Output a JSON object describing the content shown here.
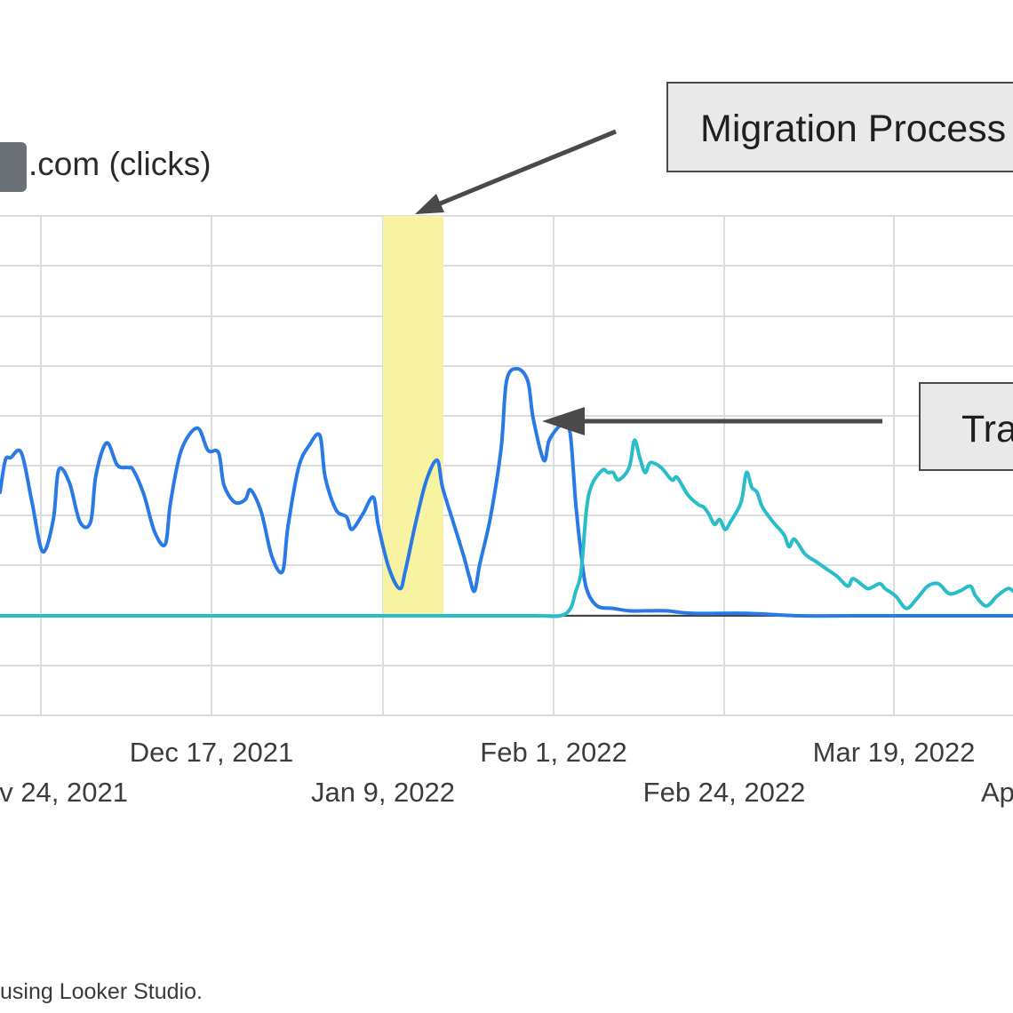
{
  "legend": {
    "label": ".com (clicks)",
    "swatch_color": "#6b7177"
  },
  "callouts": [
    {
      "text": "Migration Process"
    },
    {
      "text": "Tra"
    }
  ],
  "footer": {
    "text": "using Looker Studio."
  },
  "colors": {
    "old_domain": "#2979e6",
    "new_domain": "#29bcc9",
    "highlight": "#f7f3a0",
    "grid": "#dcdcdc"
  },
  "chart_data": {
    "type": "line",
    "x_tick_labels_row1": [
      "Dec 17, 2021",
      "Feb 1, 2022",
      "Mar 19, 2022"
    ],
    "x_tick_labels_row2": [
      "v 24, 2021",
      "Jan 9, 2022",
      "Feb 24, 2022",
      "Ap"
    ],
    "highlight_range": [
      "2022-01-09",
      "2022-01-18"
    ],
    "grid": true,
    "legend_position": "top-left",
    "series": [
      {
        "values": [
          [
            0,
            0.5
          ],
          [
            1,
            0.63
          ],
          [
            2,
            0.64
          ],
          [
            4,
            0.66
          ],
          [
            6,
            0.46
          ],
          [
            8,
            0.26
          ],
          [
            10,
            0.39
          ],
          [
            11,
            0.59
          ],
          [
            13,
            0.54
          ],
          [
            15,
            0.38
          ],
          [
            17,
            0.38
          ],
          [
            18,
            0.57
          ],
          [
            20,
            0.7
          ],
          [
            22,
            0.61
          ],
          [
            24,
            0.6
          ],
          [
            25,
            0.59
          ],
          [
            27,
            0.49
          ],
          [
            29,
            0.34
          ],
          [
            31,
            0.29
          ],
          [
            32,
            0.46
          ],
          [
            34,
            0.67
          ],
          [
            37,
            0.76
          ],
          [
            39,
            0.67
          ],
          [
            41,
            0.66
          ],
          [
            42,
            0.53
          ],
          [
            44,
            0.46
          ],
          [
            46,
            0.47
          ],
          [
            47,
            0.51
          ],
          [
            49,
            0.42
          ],
          [
            51,
            0.24
          ],
          [
            53,
            0.18
          ],
          [
            54,
            0.36
          ],
          [
            56,
            0.6
          ],
          [
            58,
            0.69
          ],
          [
            60,
            0.73
          ],
          [
            61,
            0.56
          ],
          [
            63,
            0.43
          ],
          [
            65,
            0.4
          ],
          [
            66,
            0.35
          ],
          [
            68,
            0.41
          ],
          [
            70,
            0.48
          ],
          [
            71,
            0.36
          ],
          [
            73,
            0.19
          ],
          [
            75,
            0.11
          ],
          [
            76,
            0.18
          ],
          [
            78,
            0.38
          ],
          [
            80,
            0.55
          ],
          [
            82,
            0.63
          ],
          [
            83,
            0.52
          ],
          [
            85,
            0.38
          ],
          [
            87,
            0.24
          ],
          [
            88,
            0.16
          ],
          [
            89,
            0.1
          ],
          [
            90,
            0.21
          ],
          [
            92,
            0.4
          ],
          [
            94,
            0.68
          ],
          [
            95,
            0.95
          ],
          [
            97,
            1.0
          ],
          [
            99,
            0.95
          ],
          [
            100,
            0.8
          ],
          [
            102,
            0.63
          ],
          [
            103,
            0.71
          ],
          [
            105,
            0.77
          ],
          [
            106,
            0.77
          ],
          [
            107,
            0.73
          ],
          [
            108,
            0.45
          ],
          [
            109,
            0.25
          ],
          [
            110,
            0.11
          ],
          [
            112,
            0.04
          ],
          [
            115,
            0.03
          ],
          [
            118,
            0.02
          ],
          [
            121,
            0.02
          ],
          [
            125,
            0.02
          ],
          [
            130,
            0.01
          ],
          [
            140,
            0.01
          ],
          [
            150,
            0.0
          ],
          [
            160,
            0.0
          ],
          [
            175,
            0.0
          ],
          [
            190,
            0.0
          ]
        ]
      },
      {
        "values": [
          [
            0,
            0.0
          ],
          [
            20,
            0.0
          ],
          [
            40,
            0.0
          ],
          [
            60,
            0.0
          ],
          [
            80,
            0.0
          ],
          [
            100,
            0.0
          ],
          [
            105,
            0.0
          ],
          [
            107,
            0.03
          ],
          [
            108,
            0.1
          ],
          [
            109,
            0.18
          ],
          [
            110,
            0.43
          ],
          [
            111,
            0.53
          ],
          [
            113,
            0.59
          ],
          [
            114,
            0.58
          ],
          [
            115,
            0.58
          ],
          [
            116,
            0.55
          ],
          [
            118,
            0.6
          ],
          [
            119,
            0.71
          ],
          [
            120,
            0.64
          ],
          [
            121,
            0.58
          ],
          [
            122,
            0.62
          ],
          [
            124,
            0.6
          ],
          [
            126,
            0.55
          ],
          [
            127,
            0.56
          ],
          [
            129,
            0.49
          ],
          [
            131,
            0.45
          ],
          [
            132,
            0.44
          ],
          [
            133,
            0.41
          ],
          [
            134,
            0.37
          ],
          [
            135,
            0.39
          ],
          [
            136,
            0.35
          ],
          [
            137,
            0.38
          ],
          [
            139,
            0.46
          ],
          [
            140,
            0.58
          ],
          [
            141,
            0.52
          ],
          [
            142,
            0.5
          ],
          [
            143,
            0.44
          ],
          [
            145,
            0.38
          ],
          [
            147,
            0.33
          ],
          [
            148,
            0.28
          ],
          [
            149,
            0.31
          ],
          [
            151,
            0.25
          ],
          [
            153,
            0.22
          ],
          [
            155,
            0.19
          ],
          [
            157,
            0.16
          ],
          [
            159,
            0.12
          ],
          [
            160,
            0.15
          ],
          [
            162,
            0.12
          ],
          [
            163,
            0.11
          ],
          [
            165,
            0.13
          ],
          [
            166,
            0.11
          ],
          [
            168,
            0.08
          ],
          [
            170,
            0.03
          ],
          [
            172,
            0.07
          ],
          [
            174,
            0.12
          ],
          [
            176,
            0.13
          ],
          [
            178,
            0.09
          ],
          [
            180,
            0.1
          ],
          [
            182,
            0.12
          ],
          [
            183,
            0.08
          ],
          [
            185,
            0.04
          ],
          [
            187,
            0.08
          ],
          [
            189,
            0.11
          ],
          [
            190,
            0.1
          ]
        ]
      }
    ]
  }
}
